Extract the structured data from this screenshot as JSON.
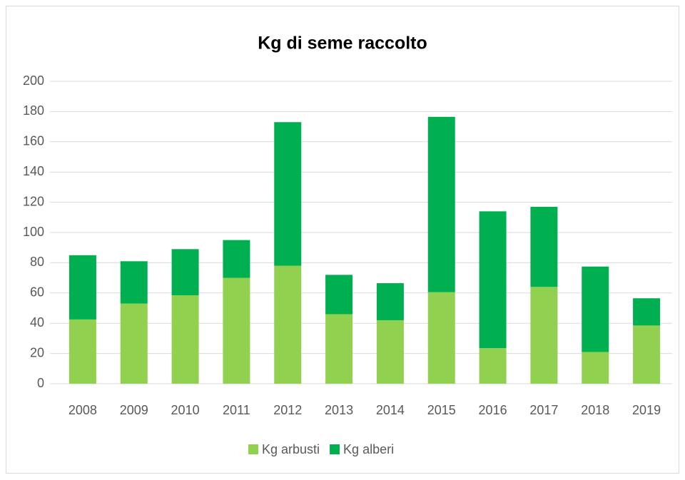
{
  "chart_data": {
    "type": "stacked_bar",
    "title": "Kg di seme raccolto",
    "categories": [
      "2008",
      "2009",
      "2010",
      "2011",
      "2012",
      "2013",
      "2014",
      "2015",
      "2016",
      "2017",
      "2018",
      "2019"
    ],
    "series": [
      {
        "name": "Kg arbusti",
        "color": "#92d050",
        "values": [
          42.5,
          53,
          58.5,
          70,
          78,
          46,
          42,
          60.5,
          23.5,
          64,
          21,
          38.5
        ]
      },
      {
        "name": "Kg alberi",
        "color": "#00b050",
        "values": [
          42.5,
          28,
          30.5,
          25,
          95,
          26,
          24.5,
          116,
          90.5,
          53,
          56.5,
          18
        ]
      }
    ],
    "ylim": [
      0,
      200
    ],
    "yticks": [
      0,
      20,
      40,
      60,
      80,
      100,
      120,
      140,
      160,
      180,
      200
    ],
    "grid": true,
    "legend": "bottom"
  }
}
